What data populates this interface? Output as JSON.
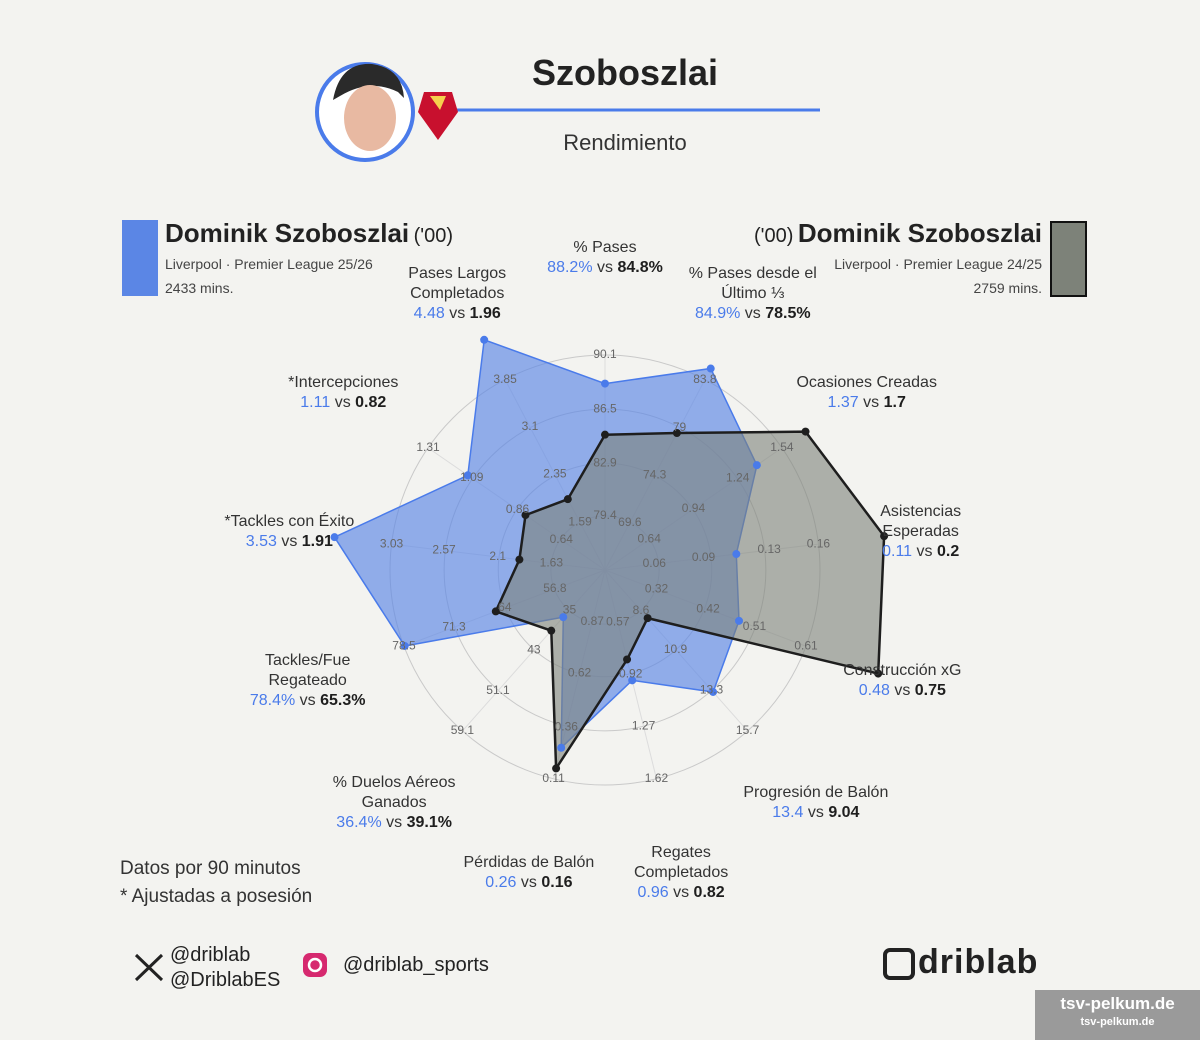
{
  "chart_data": {
    "type": "radar",
    "title": "Szoboszlai",
    "subtitle": "Rendimiento",
    "comparison_word": "vs",
    "categories": [
      "% Pases",
      "% Pases desde el\nÚltimo ⅓",
      "Ocasiones Creadas",
      "Asistencias\nEsperadas",
      "Construcción xG",
      "Progresión de Balón",
      "Regates\nCompletados",
      "Pérdidas de Balón",
      "% Duelos Aéreos\nGanados",
      "Tackles/Fue\nRegateado",
      "*Tackles con Éxito",
      "*Intercepciones",
      "Pases Largos\nCompletados"
    ],
    "axes": [
      {
        "lim": [
          75.8,
          90.1
        ],
        "ticks": [
          79.4,
          82.9,
          86.5,
          90.1
        ]
      },
      {
        "lim": [
          64.9,
          83.8
        ],
        "ticks": [
          69.6,
          74.3,
          79,
          83.8
        ]
      },
      {
        "lim": [
          0.34,
          1.54
        ],
        "ticks": [
          0.64,
          0.94,
          1.24,
          1.54
        ]
      },
      {
        "lim": [
          0.03,
          0.16
        ],
        "ticks": [
          0.06,
          0.09,
          0.13,
          0.16
        ]
      },
      {
        "lim": [
          0.22,
          0.61
        ],
        "ticks": [
          0.32,
          0.42,
          0.51,
          0.61
        ]
      },
      {
        "lim": [
          6.2,
          15.7
        ],
        "ticks": [
          8.6,
          10.9,
          13.3,
          15.7
        ]
      },
      {
        "lim": [
          0.22,
          1.62
        ],
        "ticks": [
          0.57,
          0.92,
          1.27,
          1.62
        ]
      },
      {
        "lim": [
          1.12,
          0.11
        ],
        "ticks": [
          0.87,
          0.62,
          0.36,
          0.11
        ]
      },
      {
        "lim": [
          27,
          59.1
        ],
        "ticks": [
          35,
          43,
          51.1,
          59.1
        ]
      },
      {
        "lim": [
          49.6,
          78.5
        ],
        "ticks": [
          56.8,
          64,
          71.3,
          78.5
        ]
      },
      {
        "lim": [
          1.16,
          3.03
        ],
        "ticks": [
          1.63,
          2.1,
          2.57,
          3.03
        ]
      },
      {
        "lim": [
          0.42,
          1.31
        ],
        "ticks": [
          0.64,
          0.86,
          1.09,
          1.31
        ]
      },
      {
        "lim": [
          0.84,
          3.85
        ],
        "ticks": [
          1.59,
          2.35,
          3.1,
          3.85
        ]
      }
    ],
    "series": [
      {
        "name": "Dominik Szoboszlai",
        "age": "('00)",
        "league_line": "Liverpool · Premier League 25/26",
        "minutes": "2433 mins.",
        "color": "#4a7bea",
        "fill_color": "#5b86e5",
        "values": [
          88.2,
          84.9,
          1.37,
          0.11,
          0.48,
          13.4,
          0.96,
          0.26,
          36.4,
          78.4,
          3.53,
          1.11,
          4.48
        ],
        "value_labels": [
          "88.2%",
          "84.9%",
          "1.37",
          "0.11",
          "0.48",
          "13.4",
          "0.96",
          "0.26",
          "36.4%",
          "78.4%",
          "3.53",
          "1.11",
          "4.48"
        ]
      },
      {
        "name": "Dominik Szoboszlai",
        "age": "('00)",
        "league_line": "Liverpool · Premier League 24/25",
        "minutes": "2759 mins.",
        "color": "#1e1e1e",
        "fill_color": "#7d8279",
        "values": [
          84.8,
          78.5,
          1.7,
          0.2,
          0.75,
          9.04,
          0.82,
          0.16,
          39.1,
          65.3,
          1.91,
          0.82,
          1.96
        ],
        "value_labels": [
          "84.8%",
          "78.5%",
          "1.7",
          "0.2",
          "0.75",
          "9.04",
          "0.82",
          "0.16",
          "39.1%",
          "65.3%",
          "1.91",
          "0.82",
          "1.96"
        ]
      }
    ],
    "notes": [
      "Datos por 90 minutos",
      "* Ajustadas a posesión"
    ]
  },
  "footer": {
    "handles_x": [
      "@driblab",
      "@DriblabES"
    ],
    "handle_instagram": "@driblab_sports",
    "brand": "driblab",
    "watermark": [
      "tsv-pelkum.de",
      "tsv-pelkum.de"
    ]
  }
}
